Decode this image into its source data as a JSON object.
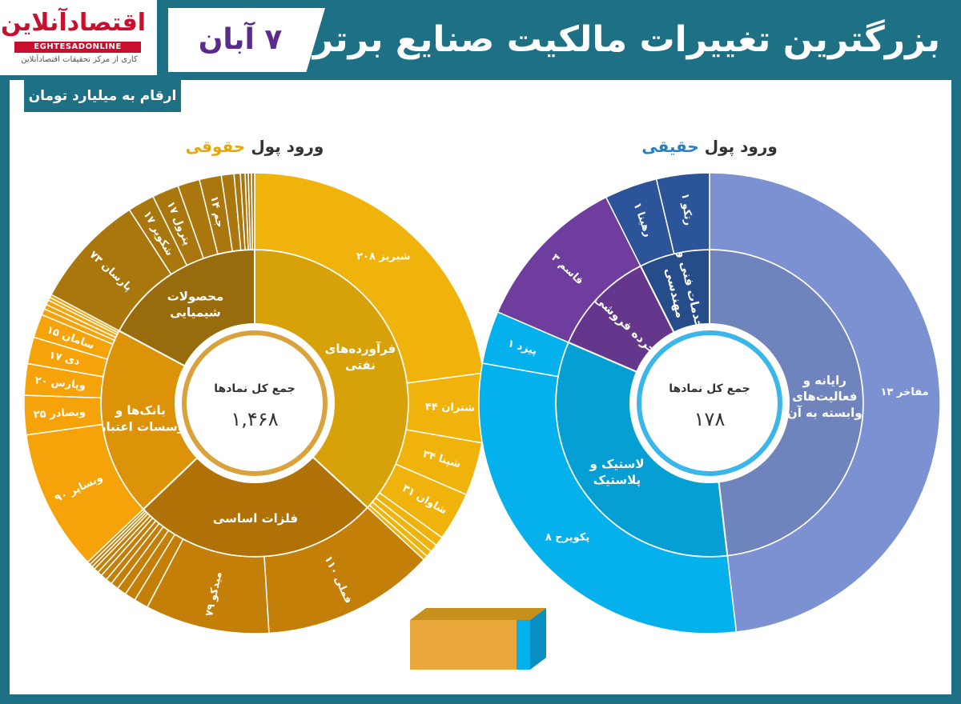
{
  "header": {
    "title": "بزرگترین تغییرات مالکیت صنایع برتر",
    "date": "۷ آبان"
  },
  "logo": {
    "name": "اقتصادآنلاین",
    "latin": "EGHTESADONLINE",
    "tagline": "کاری از مرکز تحقیقات اقتصادآنلاین"
  },
  "units_label": "ارقام به میلیارد تومان",
  "colors": {
    "frame": "#1e7184",
    "legal_gold": "#efb30b",
    "legal_brown": "#a9770d",
    "legal_orange": "#f6a309",
    "legal_darkorange": "#c47f08",
    "real_periwinkle": "#7b91d1",
    "real_sky": "#05b1ec",
    "real_purple": "#6f3d9d",
    "real_navy": "#2b5499"
  },
  "chart_data": [
    {
      "type": "sunburst",
      "title_prefix": "ورود پول",
      "title_highlight": "حقوقی",
      "center_label": "جمع کل نمادها",
      "center_value": "۱,۴۶۸",
      "industries": [
        {
          "label": "فرآورده‌های نفتی",
          "color": "#efb30b",
          "items": [
            {
              "label": "شبریز ۲۰۸",
              "value": 208
            },
            {
              "label": "شتران ۴۴",
              "value": 44
            },
            {
              "label": "شپنا ۳۴",
              "value": 34
            },
            {
              "label": "شاوان ۳۱",
              "value": 31
            },
            {
              "label": "",
              "value": 6
            },
            {
              "label": "",
              "value": 5
            },
            {
              "label": "",
              "value": 4
            },
            {
              "label": "",
              "value": 3
            }
          ]
        },
        {
          "label": "فلزات اساسی",
          "color": "#c47f08",
          "items": [
            {
              "label": "فملی ۱۱۰",
              "value": 110
            },
            {
              "label": "میدکو ۷۹",
              "value": 79
            },
            {
              "label": "",
              "value": 9
            },
            {
              "label": "",
              "value": 7
            },
            {
              "label": "",
              "value": 6
            },
            {
              "label": "",
              "value": 5
            },
            {
              "label": "",
              "value": 4
            },
            {
              "label": "",
              "value": 4
            },
            {
              "label": "",
              "value": 3
            },
            {
              "label": "",
              "value": 3
            },
            {
              "label": "",
              "value": 2
            },
            {
              "label": "",
              "value": 2
            },
            {
              "label": "",
              "value": 2
            }
          ]
        },
        {
          "label": "بانک‌ها و مؤسسات اعتباری",
          "color": "#f6a309",
          "items": [
            {
              "label": "وبساپر ۹۰",
              "value": 90
            },
            {
              "label": "وبصادر ۲۵",
              "value": 25
            },
            {
              "label": "وپارس ۲۰",
              "value": 20
            },
            {
              "label": "دی ۱۷",
              "value": 17
            },
            {
              "label": "سامان ۱۵",
              "value": 15
            },
            {
              "label": "",
              "value": 4
            },
            {
              "label": "",
              "value": 3
            },
            {
              "label": "",
              "value": 3
            },
            {
              "label": "",
              "value": 2
            },
            {
              "label": "",
              "value": 2
            }
          ]
        },
        {
          "label": "محصولات شیمیایی",
          "color": "#a9770d",
          "items": [
            {
              "label": "پارسان ۷۳",
              "value": 73
            },
            {
              "label": "شکویر ۱۷",
              "value": 17
            },
            {
              "label": "پترول ۱۷",
              "value": 17
            },
            {
              "label": "",
              "value": 14
            },
            {
              "label": "جم ۱۴",
              "value": 14
            },
            {
              "label": "",
              "value": 8
            },
            {
              "label": "",
              "value": 4
            },
            {
              "label": "",
              "value": 3
            },
            {
              "label": "",
              "value": 2
            },
            {
              "label": "",
              "value": 2
            },
            {
              "label": "",
              "value": 2
            }
          ]
        }
      ]
    },
    {
      "type": "sunburst",
      "title_prefix": "ورود پول",
      "title_highlight": "حقیقی",
      "center_label": "جمع کل نمادها",
      "center_value": "۱۷۸",
      "industries": [
        {
          "label": "رایانه و فعالیت‌های وابسته به آن",
          "color": "#7b91d1",
          "items": [
            {
              "label": "مفاخر ۱۳",
              "value": 13
            }
          ]
        },
        {
          "label": "لاستیک و پلاستیک",
          "color": "#05b1ec",
          "items": [
            {
              "label": "پکویرح ۸",
              "value": 8
            },
            {
              "label": "پیزد ۱",
              "value": 1
            }
          ]
        },
        {
          "label": "خرده فروشی",
          "color": "#6f3d9d",
          "items": [
            {
              "label": "قاسم ۳",
              "value": 3
            }
          ]
        },
        {
          "label": "خدمات فنی و مهندسی",
          "color": "#2b5499",
          "items": [
            {
              "label": "رهینا ۱",
              "value": 1
            },
            {
              "label": "رتکو ۱",
              "value": 1
            }
          ]
        }
      ]
    }
  ]
}
